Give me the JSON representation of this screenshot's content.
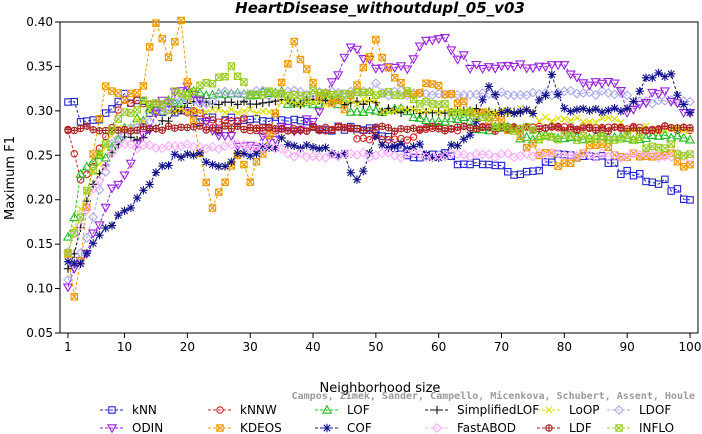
{
  "chart_data": {
    "type": "line",
    "title": "HeartDisease_withoutdupl_05_v03",
    "xlabel": "Neighborhood size",
    "ylabel": "Maximum F1",
    "xlim": [
      1,
      100
    ],
    "ylim": [
      0.05,
      0.4
    ],
    "xticks": [
      1,
      10,
      20,
      30,
      40,
      50,
      60,
      70,
      80,
      90,
      100
    ],
    "yticks": [
      "0.05",
      "0.10",
      "0.15",
      "0.20",
      "0.25",
      "0.30",
      "0.35",
      "0.40"
    ],
    "grid": false,
    "legend_position": "bottom",
    "series": [
      {
        "name": "kNN",
        "color": "#2222cc",
        "marker": "square",
        "anchors": [
          [
            1,
            0.31
          ],
          [
            2,
            0.31
          ],
          [
            3,
            0.29
          ],
          [
            5,
            0.29
          ],
          [
            8,
            0.3
          ],
          [
            10,
            0.315
          ],
          [
            15,
            0.3
          ],
          [
            20,
            0.3
          ],
          [
            25,
            0.285
          ],
          [
            30,
            0.29
          ],
          [
            40,
            0.285
          ],
          [
            45,
            0.275
          ],
          [
            50,
            0.275
          ],
          [
            55,
            0.25
          ],
          [
            60,
            0.25
          ],
          [
            65,
            0.24
          ],
          [
            70,
            0.235
          ],
          [
            75,
            0.23
          ],
          [
            80,
            0.25
          ],
          [
            85,
            0.25
          ],
          [
            90,
            0.23
          ],
          [
            95,
            0.22
          ],
          [
            100,
            0.2
          ]
        ]
      },
      {
        "name": "kNNW",
        "color": "#cc2222",
        "marker": "circle",
        "anchors": [
          [
            1,
            0.285
          ],
          [
            2,
            0.25
          ],
          [
            3,
            0.22
          ],
          [
            5,
            0.24
          ],
          [
            8,
            0.285
          ],
          [
            10,
            0.31
          ],
          [
            15,
            0.31
          ],
          [
            20,
            0.3
          ],
          [
            25,
            0.29
          ],
          [
            30,
            0.285
          ],
          [
            40,
            0.285
          ],
          [
            50,
            0.27
          ],
          [
            55,
            0.27
          ],
          [
            60,
            0.285
          ],
          [
            70,
            0.285
          ],
          [
            80,
            0.285
          ],
          [
            90,
            0.285
          ],
          [
            100,
            0.285
          ]
        ]
      },
      {
        "name": "LOF",
        "color": "#22bb22",
        "marker": "triangle-up",
        "anchors": [
          [
            1,
            0.16
          ],
          [
            2,
            0.18
          ],
          [
            3,
            0.23
          ],
          [
            5,
            0.24
          ],
          [
            7,
            0.25
          ],
          [
            10,
            0.28
          ],
          [
            15,
            0.3
          ],
          [
            20,
            0.315
          ],
          [
            30,
            0.32
          ],
          [
            40,
            0.31
          ],
          [
            50,
            0.3
          ],
          [
            60,
            0.29
          ],
          [
            70,
            0.28
          ],
          [
            75,
            0.27
          ],
          [
            80,
            0.265
          ],
          [
            90,
            0.265
          ],
          [
            100,
            0.265
          ]
        ]
      },
      {
        "name": "SimplifiedLOF",
        "color": "#111111",
        "marker": "plus",
        "anchors": [
          [
            1,
            0.12
          ],
          [
            2,
            0.14
          ],
          [
            3,
            0.17
          ],
          [
            5,
            0.22
          ],
          [
            7,
            0.24
          ],
          [
            10,
            0.265
          ],
          [
            15,
            0.28
          ],
          [
            20,
            0.31
          ],
          [
            30,
            0.31
          ],
          [
            40,
            0.31
          ],
          [
            50,
            0.305
          ],
          [
            60,
            0.3
          ],
          [
            70,
            0.3
          ],
          [
            73,
            0.3
          ]
        ]
      },
      {
        "name": "LoOP",
        "color": "#dddd00",
        "marker": "x",
        "anchors": [
          [
            1,
            0.14
          ],
          [
            3,
            0.19
          ],
          [
            5,
            0.23
          ],
          [
            8,
            0.27
          ],
          [
            10,
            0.28
          ],
          [
            15,
            0.3
          ],
          [
            20,
            0.3
          ],
          [
            30,
            0.3
          ],
          [
            40,
            0.31
          ],
          [
            50,
            0.305
          ],
          [
            60,
            0.3
          ],
          [
            70,
            0.3
          ],
          [
            80,
            0.29
          ],
          [
            90,
            0.285
          ],
          [
            100,
            0.285
          ]
        ]
      },
      {
        "name": "LDOF",
        "color": "#aaaaee",
        "marker": "diamond",
        "anchors": [
          [
            1,
            0.11
          ],
          [
            3,
            0.14
          ],
          [
            5,
            0.18
          ],
          [
            8,
            0.26
          ],
          [
            10,
            0.27
          ],
          [
            15,
            0.3
          ],
          [
            20,
            0.31
          ],
          [
            30,
            0.32
          ],
          [
            40,
            0.32
          ],
          [
            50,
            0.325
          ],
          [
            60,
            0.32
          ],
          [
            70,
            0.315
          ],
          [
            80,
            0.315
          ],
          [
            90,
            0.315
          ],
          [
            100,
            0.31
          ]
        ]
      },
      {
        "name": "ODIN",
        "color": "#9922dd",
        "marker": "triangle-down",
        "anchors": [
          [
            1,
            0.1
          ],
          [
            3,
            0.13
          ],
          [
            5,
            0.155
          ],
          [
            7,
            0.19
          ],
          [
            9,
            0.22
          ],
          [
            12,
            0.255
          ],
          [
            15,
            0.3
          ],
          [
            20,
            0.33
          ],
          [
            25,
            0.27
          ],
          [
            30,
            0.26
          ],
          [
            35,
            0.275
          ],
          [
            40,
            0.29
          ],
          [
            46,
            0.37
          ],
          [
            50,
            0.35
          ],
          [
            55,
            0.35
          ],
          [
            58,
            0.375
          ],
          [
            61,
            0.375
          ],
          [
            65,
            0.35
          ],
          [
            80,
            0.35
          ],
          [
            83,
            0.33
          ],
          [
            88,
            0.33
          ],
          [
            90,
            0.3
          ],
          [
            95,
            0.32
          ],
          [
            100,
            0.295
          ]
        ]
      },
      {
        "name": "KDEOS",
        "color": "#ee9900",
        "marker": "square-x",
        "anchors": [
          [
            1,
            0.14
          ],
          [
            2,
            0.09
          ],
          [
            3,
            0.13
          ],
          [
            5,
            0.25
          ],
          [
            7,
            0.33
          ],
          [
            10,
            0.31
          ],
          [
            13,
            0.33
          ],
          [
            15,
            0.4
          ],
          [
            17,
            0.36
          ],
          [
            19,
            0.4
          ],
          [
            20,
            0.33
          ],
          [
            22,
            0.25
          ],
          [
            24,
            0.19
          ],
          [
            26,
            0.22
          ],
          [
            28,
            0.25
          ],
          [
            30,
            0.22
          ],
          [
            33,
            0.27
          ],
          [
            35,
            0.33
          ],
          [
            37,
            0.375
          ],
          [
            40,
            0.33
          ],
          [
            45,
            0.3
          ],
          [
            50,
            0.375
          ],
          [
            55,
            0.32
          ],
          [
            60,
            0.33
          ],
          [
            65,
            0.3
          ],
          [
            70,
            0.29
          ],
          [
            75,
            0.255
          ],
          [
            80,
            0.24
          ],
          [
            85,
            0.26
          ],
          [
            90,
            0.25
          ],
          [
            95,
            0.25
          ],
          [
            100,
            0.24
          ]
        ]
      },
      {
        "name": "COF",
        "color": "#111188",
        "marker": "asterisk",
        "anchors": [
          [
            1,
            0.125
          ],
          [
            3,
            0.13
          ],
          [
            5,
            0.15
          ],
          [
            7,
            0.165
          ],
          [
            9,
            0.18
          ],
          [
            12,
            0.2
          ],
          [
            15,
            0.23
          ],
          [
            18,
            0.25
          ],
          [
            20,
            0.25
          ],
          [
            25,
            0.24
          ],
          [
            30,
            0.25
          ],
          [
            35,
            0.265
          ],
          [
            40,
            0.26
          ],
          [
            45,
            0.25
          ],
          [
            47,
            0.215
          ],
          [
            50,
            0.265
          ],
          [
            55,
            0.26
          ],
          [
            60,
            0.25
          ],
          [
            65,
            0.27
          ],
          [
            68,
            0.33
          ],
          [
            70,
            0.3
          ],
          [
            75,
            0.3
          ],
          [
            78,
            0.335
          ],
          [
            80,
            0.3
          ],
          [
            85,
            0.3
          ],
          [
            90,
            0.3
          ],
          [
            93,
            0.335
          ],
          [
            97,
            0.335
          ],
          [
            100,
            0.3
          ]
        ]
      },
      {
        "name": "FastABOD",
        "color": "#ffaaff",
        "marker": "diamond",
        "anchors": [
          [
            1,
            0.14
          ],
          [
            3,
            0.17
          ],
          [
            5,
            0.21
          ],
          [
            8,
            0.25
          ],
          [
            10,
            0.26
          ],
          [
            20,
            0.26
          ],
          [
            30,
            0.26
          ],
          [
            40,
            0.25
          ],
          [
            50,
            0.25
          ],
          [
            60,
            0.25
          ],
          [
            70,
            0.25
          ],
          [
            80,
            0.25
          ],
          [
            90,
            0.25
          ],
          [
            100,
            0.25
          ]
        ]
      },
      {
        "name": "LDF",
        "color": "#aa2222",
        "marker": "circle-plus",
        "anchors": [
          [
            1,
            0.28
          ],
          [
            3,
            0.28
          ],
          [
            5,
            0.28
          ],
          [
            8,
            0.285
          ],
          [
            10,
            0.285
          ],
          [
            20,
            0.285
          ],
          [
            30,
            0.285
          ],
          [
            40,
            0.285
          ],
          [
            50,
            0.285
          ],
          [
            60,
            0.285
          ],
          [
            70,
            0.285
          ],
          [
            80,
            0.285
          ],
          [
            90,
            0.285
          ],
          [
            100,
            0.285
          ]
        ]
      },
      {
        "name": "INFLO",
        "color": "#99cc22",
        "marker": "square-x",
        "anchors": [
          [
            1,
            0.14
          ],
          [
            3,
            0.18
          ],
          [
            5,
            0.23
          ],
          [
            8,
            0.28
          ],
          [
            10,
            0.3
          ],
          [
            15,
            0.31
          ],
          [
            20,
            0.32
          ],
          [
            25,
            0.335
          ],
          [
            27,
            0.35
          ],
          [
            30,
            0.32
          ],
          [
            40,
            0.32
          ],
          [
            50,
            0.32
          ],
          [
            60,
            0.31
          ],
          [
            70,
            0.28
          ],
          [
            75,
            0.275
          ],
          [
            80,
            0.27
          ],
          [
            85,
            0.27
          ],
          [
            90,
            0.27
          ],
          [
            95,
            0.26
          ],
          [
            100,
            0.25
          ]
        ]
      }
    ]
  },
  "watermark": "Campos, Zimek, Sander, Campello, Micenkova, Schubert, Assent, Houle"
}
